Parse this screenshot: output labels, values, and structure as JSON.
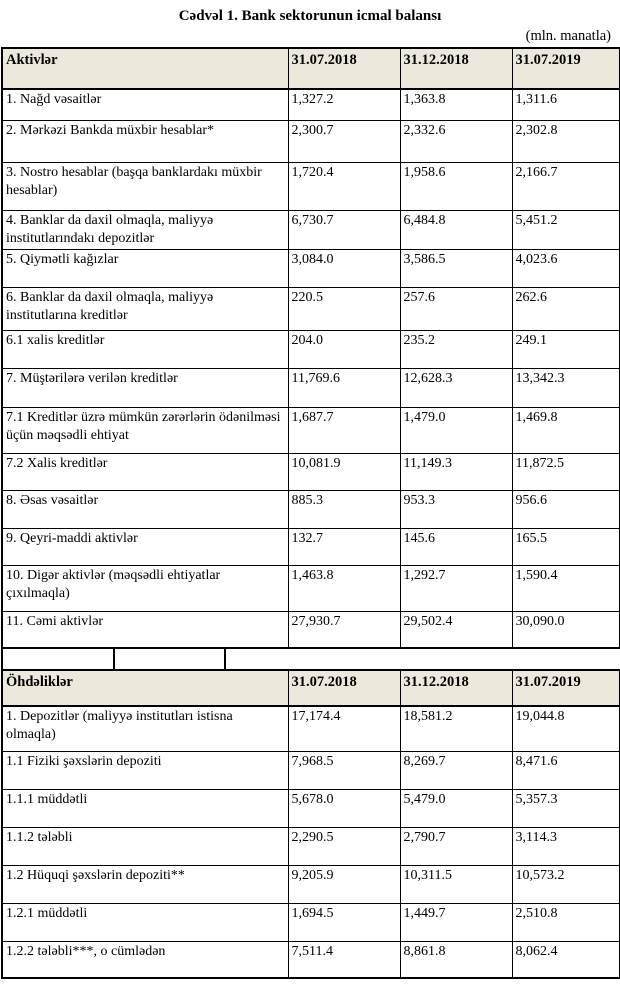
{
  "title": "Cədvəl 1. Bank sektorunun icmal balansı",
  "unit_note": "(mln. manatla)",
  "columns": [
    "31.07.2018",
    "31.12.2018",
    "31.07.2019"
  ],
  "tables": [
    {
      "header": "Aktivlər",
      "rows": [
        {
          "label": "1. Nağd vəsaitlər",
          "values": [
            "1,327.2",
            "1,363.8",
            "1,311.6"
          ]
        },
        {
          "label": "2. Mərkəzi Bankda müxbir hesablar*",
          "values": [
            "2,300.7",
            "2,332.6",
            "2,302.8"
          ]
        },
        {
          "label": "3. Nostro hesablar (başqa banklardakı müxbir hesablar)",
          "values": [
            "1,720.4",
            "1,958.6",
            "2,166.7"
          ]
        },
        {
          "label": "4. Banklar da daxil olmaqla, maliyyə institutlarındakı depozitlər",
          "values": [
            "6,730.7",
            "6,484.8",
            "5,451.2"
          ]
        },
        {
          "label": "5. Qiymətli kağızlar",
          "values": [
            "3,084.0",
            "3,586.5",
            "4,023.6"
          ]
        },
        {
          "label": "6. Banklar da daxil olmaqla, maliyyə institutlarına kreditlər",
          "values": [
            "220.5",
            "257.6",
            "262.6"
          ]
        },
        {
          "label": "6.1 xalis kreditlər",
          "values": [
            "204.0",
            "235.2",
            "249.1"
          ]
        },
        {
          "label": "7. Müştərilərə verilən kreditlər",
          "values": [
            "11,769.6",
            "12,628.3",
            "13,342.3"
          ]
        },
        {
          "label": "7.1 Kreditlər üzrə mümkün zərərlərin ödənilməsi üçün məqsədli ehtiyat",
          "values": [
            "1,687.7",
            "1,479.0",
            "1,469.8"
          ]
        },
        {
          "label": "7.2 Xalis kreditlər",
          "values": [
            "10,081.9",
            "11,149.3",
            "11,872.5"
          ]
        },
        {
          "label": "8. Əsas vəsaitlər",
          "values": [
            "885.3",
            "953.3",
            "956.6"
          ]
        },
        {
          "label": "9. Qeyri-maddi aktivlər",
          "values": [
            "132.7",
            "145.6",
            "165.5"
          ]
        },
        {
          "label": "10. Digər aktivlər (məqsədli ehtiyatlar çıxılmaqla)",
          "values": [
            "1,463.8",
            "1,292.7",
            "1,590.4"
          ]
        },
        {
          "label": "11. Cəmi aktivlər",
          "values": [
            "27,930.7",
            "29,502.4",
            "30,090.0"
          ]
        }
      ]
    },
    {
      "header": "Öhdəliklər",
      "rows": [
        {
          "label": "1. Depozitlər (maliyyə institutları istisna olmaqla)",
          "values": [
            "17,174.4",
            "18,581.2",
            "19,044.8"
          ]
        },
        {
          "label": "1.1 Fiziki şəxslərin depoziti",
          "values": [
            "7,968.5",
            "8,269.7",
            "8,471.6"
          ]
        },
        {
          "label": "1.1.1 müddətli",
          "values": [
            "5,678.0",
            "5,479.0",
            "5,357.3"
          ]
        },
        {
          "label": "1.1.2 tələbli",
          "values": [
            "2,290.5",
            "2,790.7",
            "3,114.3"
          ]
        },
        {
          "label": "1.2 Hüquqi şəxslərin depoziti**",
          "values": [
            "9,205.9",
            "10,311.5",
            "10,573.2"
          ]
        },
        {
          "label": "1.2.1 müddətli",
          "values": [
            "1,694.5",
            "1,449.7",
            "2,510.8"
          ]
        },
        {
          "label": "1.2.2 tələbli***, o cümlədən",
          "values": [
            "7,511.4",
            "8,861.8",
            "8,062.4"
          ]
        }
      ]
    }
  ],
  "colors": {
    "page_bg": "#FFFFFF",
    "header_bg": "#ECE9DC",
    "border": "#000000",
    "text": "#000000"
  }
}
